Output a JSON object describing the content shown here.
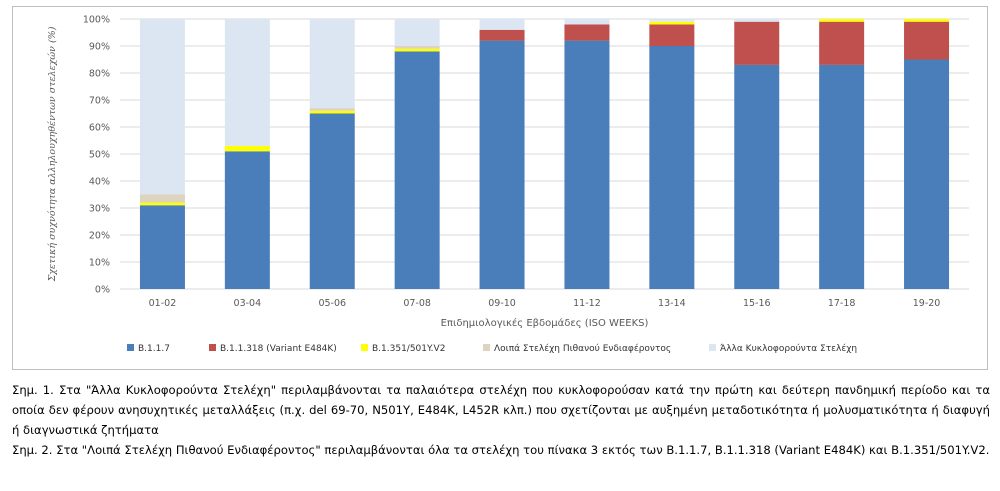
{
  "chart_data": {
    "type": "bar",
    "stacked": true,
    "normalized": true,
    "categories": [
      "01-02",
      "03-04",
      "05-06",
      "07-08",
      "09-10",
      "11-12",
      "13-14",
      "15-16",
      "17-18",
      "19-20"
    ],
    "series": [
      {
        "name": "B.1.1.7",
        "color": "#4a7ebb",
        "values": [
          31,
          51,
          65,
          88,
          92,
          92,
          90,
          83,
          83,
          85
        ]
      },
      {
        "name": "B.1.1.318 (Variant E484K)",
        "color": "#c0504d",
        "values": [
          0,
          0,
          0,
          0,
          4,
          6,
          8,
          16,
          16,
          14
        ]
      },
      {
        "name": "B.1.351/501Y.V2",
        "color": "#ffff00",
        "values": [
          1,
          2,
          1,
          1,
          0,
          0,
          1,
          0,
          1,
          1
        ]
      },
      {
        "name": "Λοιπά Στελέχη Πιθανού Ενδιαφέροντος",
        "color": "#ddd3bf",
        "values": [
          3,
          0,
          1,
          1,
          0,
          0,
          0,
          0,
          0,
          0
        ]
      },
      {
        "name": "Άλλα Κυκλοφορούντα Στελέχη",
        "color": "#dce6f2",
        "values": [
          65,
          47,
          33,
          10,
          4,
          2,
          1,
          1,
          0,
          0
        ]
      }
    ],
    "yticks": [
      "0%",
      "10%",
      "20%",
      "30%",
      "40%",
      "50%",
      "60%",
      "70%",
      "80%",
      "90%",
      "100%"
    ],
    "ylim": [
      0,
      100
    ],
    "xlabel": "Επιδημιολογικές Εβδομάδες (ISO WEEKS)",
    "ylabel": "Σχετική συχνότητα αλληλουχηθέντων στελεχών (%)",
    "grid": true,
    "legend_position": "bottom"
  },
  "notes": [
    "Σημ.  1.  Στα \"Άλλα Κυκλοφορούντα Στελέχη\" περιλαμβάνονται τα παλαιότερα στελέχη που κυκλοφορούσαν κατά την πρώτη και δεύτερη πανδημική περίοδο και τα οποία δεν φέρουν ανησυχητικές μεταλλάξεις (π.χ. del 69-70, N501Y, E484K, L452R κλπ.) που σχετίζονται με αυξημένη μεταδοτικότητα ή μολυσματικότητα ή διαφυγή ή διαγνωστικά ζητήματα",
    "Σημ. 2. Στα \"Λοιπά Στελέχη Πιθανού Ενδιαφέροντος\" περιλαμβάνονται όλα τα στελέχη του πίνακα 3 εκτός των B.1.1.7, B.1.1.318 (Variant E484K) και B.1.351/501Y.V2."
  ]
}
